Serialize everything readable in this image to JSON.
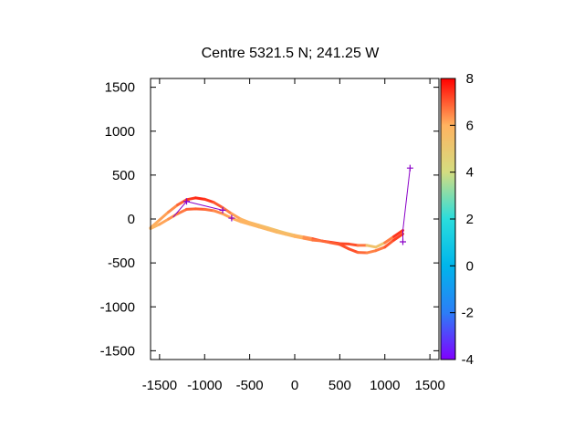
{
  "chart_data": {
    "type": "line",
    "title": "Centre 5321.5 N; 241.25  W",
    "xlim": [
      -1600,
      1600
    ],
    "ylim": [
      -1600,
      1600
    ],
    "xticks": [
      -1500,
      -1000,
      -500,
      0,
      500,
      1000,
      1500
    ],
    "yticks": [
      -1500,
      -1000,
      -500,
      0,
      500,
      1000,
      1500
    ],
    "xtick_labels": [
      "-1500",
      "-1000",
      "-500",
      "0",
      "500",
      "1000",
      "1500"
    ],
    "ytick_labels": [
      "-1500",
      "-1000",
      "-500",
      "0",
      "500",
      "1000",
      "1500"
    ],
    "colorbar": {
      "range": [
        -4,
        8
      ],
      "ticks": [
        -4,
        -2,
        0,
        2,
        4,
        6,
        8
      ],
      "tick_labels": [
        "-4",
        "-2",
        "0",
        "2",
        "4",
        "6",
        "8"
      ],
      "palette": "rainbow"
    },
    "track_upper": [
      [
        -1600,
        -100,
        6.0
      ],
      [
        -1500,
        -10,
        6.1
      ],
      [
        -1400,
        80,
        6.3
      ],
      [
        -1300,
        160,
        6.6
      ],
      [
        -1200,
        220,
        7.2
      ],
      [
        -1100,
        240,
        7.6
      ],
      [
        -1000,
        225,
        7.5
      ],
      [
        -900,
        190,
        7.2
      ],
      [
        -800,
        130,
        6.8
      ],
      [
        -700,
        60,
        6.4
      ],
      [
        -600,
        0,
        6.0
      ],
      [
        -500,
        -40,
        5.8
      ],
      [
        -400,
        -70,
        5.6
      ],
      [
        -300,
        -100,
        5.5
      ],
      [
        -200,
        -130,
        5.4
      ],
      [
        -100,
        -160,
        5.3
      ],
      [
        0,
        -185,
        5.5
      ],
      [
        100,
        -205,
        6.0
      ],
      [
        200,
        -225,
        6.8
      ],
      [
        300,
        -250,
        7.4
      ],
      [
        400,
        -265,
        7.6
      ],
      [
        500,
        -280,
        7.4
      ],
      [
        600,
        -285,
        7.0
      ],
      [
        700,
        -300,
        7.2
      ],
      [
        800,
        -300,
        6.2
      ],
      [
        900,
        -320,
        4.5
      ],
      [
        1000,
        -270,
        6.0
      ],
      [
        1100,
        -200,
        7.2
      ],
      [
        1200,
        -130,
        7.6
      ]
    ],
    "track_lower": [
      [
        -1600,
        -110,
        5.8
      ],
      [
        -1500,
        -60,
        6.0
      ],
      [
        -1400,
        0,
        6.3
      ],
      [
        -1300,
        60,
        6.5
      ],
      [
        -1200,
        110,
        6.8
      ],
      [
        -1100,
        115,
        7.0
      ],
      [
        -1000,
        110,
        6.9
      ],
      [
        -900,
        95,
        6.6
      ],
      [
        -800,
        60,
        6.3
      ],
      [
        -700,
        10,
        6.1
      ],
      [
        -600,
        -30,
        6.0
      ],
      [
        -500,
        -60,
        5.9
      ],
      [
        -400,
        -90,
        5.8
      ],
      [
        -300,
        -120,
        5.8
      ],
      [
        -200,
        -150,
        5.8
      ],
      [
        -100,
        -175,
        5.6
      ],
      [
        0,
        -200,
        5.8
      ],
      [
        100,
        -220,
        6.2
      ],
      [
        200,
        -240,
        6.6
      ],
      [
        300,
        -250,
        6.8
      ],
      [
        400,
        -270,
        6.9
      ],
      [
        500,
        -290,
        7.0
      ],
      [
        600,
        -340,
        7.2
      ],
      [
        700,
        -380,
        7.0
      ],
      [
        800,
        -385,
        6.6
      ],
      [
        900,
        -360,
        6.5
      ],
      [
        1000,
        -320,
        6.8
      ],
      [
        1100,
        -240,
        7.2
      ],
      [
        1200,
        -170,
        7.4
      ]
    ],
    "markers": [
      [
        -1200,
        200
      ],
      [
        -800,
        100
      ],
      [
        -700,
        10
      ],
      [
        1200,
        -260
      ],
      [
        1280,
        580
      ]
    ],
    "connectors": [
      [
        [
          -1350,
          20
        ],
        [
          -1200,
          200
        ]
      ],
      [
        [
          -1200,
          200
        ],
        [
          -800,
          100
        ]
      ],
      [
        [
          1200,
          -260
        ],
        [
          1200,
          -130
        ]
      ],
      [
        [
          1200,
          -130
        ],
        [
          1280,
          580
        ]
      ]
    ],
    "marker_color": "#8a00c8",
    "connector_color": "#8a00c8"
  }
}
